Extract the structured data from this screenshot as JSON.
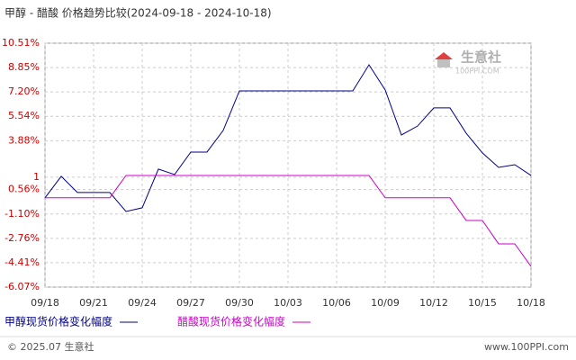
{
  "chart_data": {
    "type": "line",
    "title": "甲醇 - 醋酸 价格趋势比较(2024-09-18 - 2024-10-18)",
    "x": [
      "09/18",
      null,
      null,
      "09/21",
      null,
      null,
      "09/24",
      null,
      null,
      "09/27",
      null,
      null,
      "09/30",
      null,
      null,
      "10/03",
      null,
      null,
      "10/06",
      null,
      null,
      "10/09",
      null,
      null,
      "10/12",
      null,
      null,
      "10/15",
      null,
      null,
      "10/18"
    ],
    "series": [
      {
        "name": "甲醇现货价格变化幅度",
        "color": "#00008b",
        "values": [
          0,
          1.46,
          0.36,
          0.36,
          0.36,
          -0.93,
          -0.68,
          1.95,
          1.58,
          3.11,
          3.11,
          4.58,
          7.27,
          7.27,
          7.27,
          7.27,
          7.27,
          7.27,
          7.27,
          7.27,
          9.04,
          7.33,
          4.27,
          4.88,
          6.11,
          6.11,
          4.39,
          3.05,
          2.07,
          2.25,
          1.52
        ]
      },
      {
        "name": "醋酸现货价格变化幅度",
        "color": "#cc00cc",
        "values": [
          0,
          0,
          0,
          0,
          0,
          1.52,
          1.52,
          1.52,
          1.52,
          1.52,
          1.52,
          1.52,
          1.52,
          1.52,
          1.52,
          1.52,
          1.52,
          1.52,
          1.52,
          1.52,
          1.52,
          0,
          0,
          0,
          0,
          0,
          -1.54,
          -1.54,
          -3.13,
          -3.13,
          -4.66
        ]
      }
    ],
    "ylim": [
      -6.07,
      10.51
    ],
    "yticks": [
      {
        "value": 10.51,
        "label": "10.51%"
      },
      {
        "value": 8.85,
        "label": "8.85%"
      },
      {
        "value": 7.2,
        "label": "7.20%"
      },
      {
        "value": 5.54,
        "label": "5.54%"
      },
      {
        "value": 3.88,
        "label": "3.88%"
      },
      {
        "value": 1.4,
        "label": "1"
      },
      {
        "value": 0.56,
        "label": "0.56%"
      },
      {
        "value": -1.1,
        "label": "-1.10%"
      },
      {
        "value": -2.76,
        "label": "-2.76%"
      },
      {
        "value": -4.41,
        "label": "-4.41%"
      },
      {
        "value": -6.07,
        "label": "-6.07%"
      }
    ],
    "grid": true,
    "watermark": {
      "name": "生意社",
      "site": "100PPI.COM"
    },
    "footer": {
      "left": "© 2025.07 生意社",
      "right": "www.100PPI.com"
    }
  }
}
